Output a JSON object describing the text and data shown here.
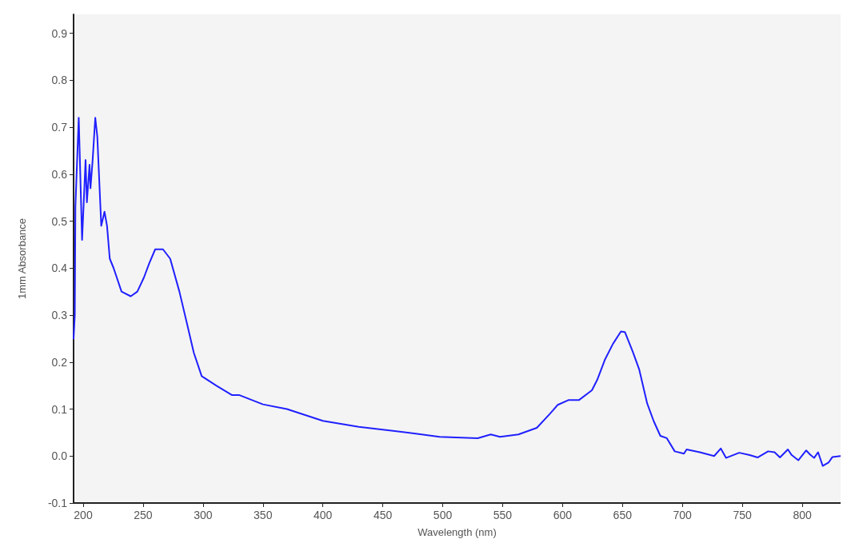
{
  "chart_data": {
    "type": "line",
    "xlabel": "Wavelength (nm)",
    "ylabel": "1mm Absorbance",
    "xlim": [
      192,
      832
    ],
    "xticks": [
      200,
      250,
      300,
      350,
      400,
      450,
      500,
      550,
      600,
      650,
      700,
      750,
      800
    ],
    "ylim": [
      -0.1,
      0.94
    ],
    "yticks": [
      -0.1,
      {
        "value": 0,
        "label": "0.0"
      },
      0.1,
      0.2,
      0.3,
      0.4,
      0.5,
      0.6,
      0.7,
      0.8,
      0.9
    ],
    "grid": false,
    "marker": "none",
    "line_style": "solid",
    "series": [
      {
        "color": "#2020ff",
        "x": [
          192,
          193,
          193.5,
          196.3,
          199.1,
          202,
          203.1,
          205.3,
          206.1,
          207.9,
          210.1,
          211.8,
          215.1,
          217.8,
          219.9,
          222.2,
          225.4,
          232,
          239.7,
          245.2,
          250.7,
          255.1,
          260.1,
          266.6,
          272.6,
          280.3,
          286.8,
          292.3,
          298.9,
          311,
          324,
          330,
          350,
          370,
          400,
          430,
          460,
          480,
          497.4,
          529.2,
          540.1,
          547.8,
          563.2,
          578.5,
          589.5,
          596,
          604.8,
          613.6,
          624.5,
          628.9,
          635.5,
          642.1,
          648.7,
          652,
          658.6,
          664,
          670.6,
          676.1,
          681.6,
          687,
          693.6,
          701.3,
          703.5,
          714.5,
          726.5,
          732,
          736.4,
          747.4,
          756.1,
          762.7,
          771.5,
          776.9,
          781.4,
          788,
          791.2,
          796.7,
          803.3,
          806.6,
          809.9,
          813.2,
          817.1,
          821.9,
          825.2,
          832
        ],
        "values": [
          0.25,
          0.3,
          0.53,
          0.72,
          0.46,
          0.63,
          0.54,
          0.62,
          0.57,
          0.63,
          0.72,
          0.68,
          0.49,
          0.52,
          0.49,
          0.42,
          0.4,
          0.35,
          0.34,
          0.35,
          0.38,
          0.41,
          0.44,
          0.44,
          0.42,
          0.35,
          0.28,
          0.22,
          0.17,
          0.15,
          0.13,
          0.13,
          0.11,
          0.1,
          0.075,
          0.062,
          0.053,
          0.047,
          0.041,
          0.038,
          0.046,
          0.041,
          0.046,
          0.06,
          0.09,
          0.109,
          0.119,
          0.119,
          0.14,
          0.162,
          0.206,
          0.239,
          0.265,
          0.264,
          0.222,
          0.184,
          0.112,
          0.074,
          0.043,
          0.038,
          0.01,
          0.005,
          0.014,
          0.008,
          0.0,
          0.016,
          -0.004,
          0.007,
          0.002,
          -0.003,
          0.01,
          0.008,
          -0.003,
          0.014,
          0.002,
          -0.009,
          0.012,
          0.003,
          -0.004,
          0.008,
          -0.021,
          -0.014,
          -0.002,
          0.0
        ]
      }
    ]
  }
}
